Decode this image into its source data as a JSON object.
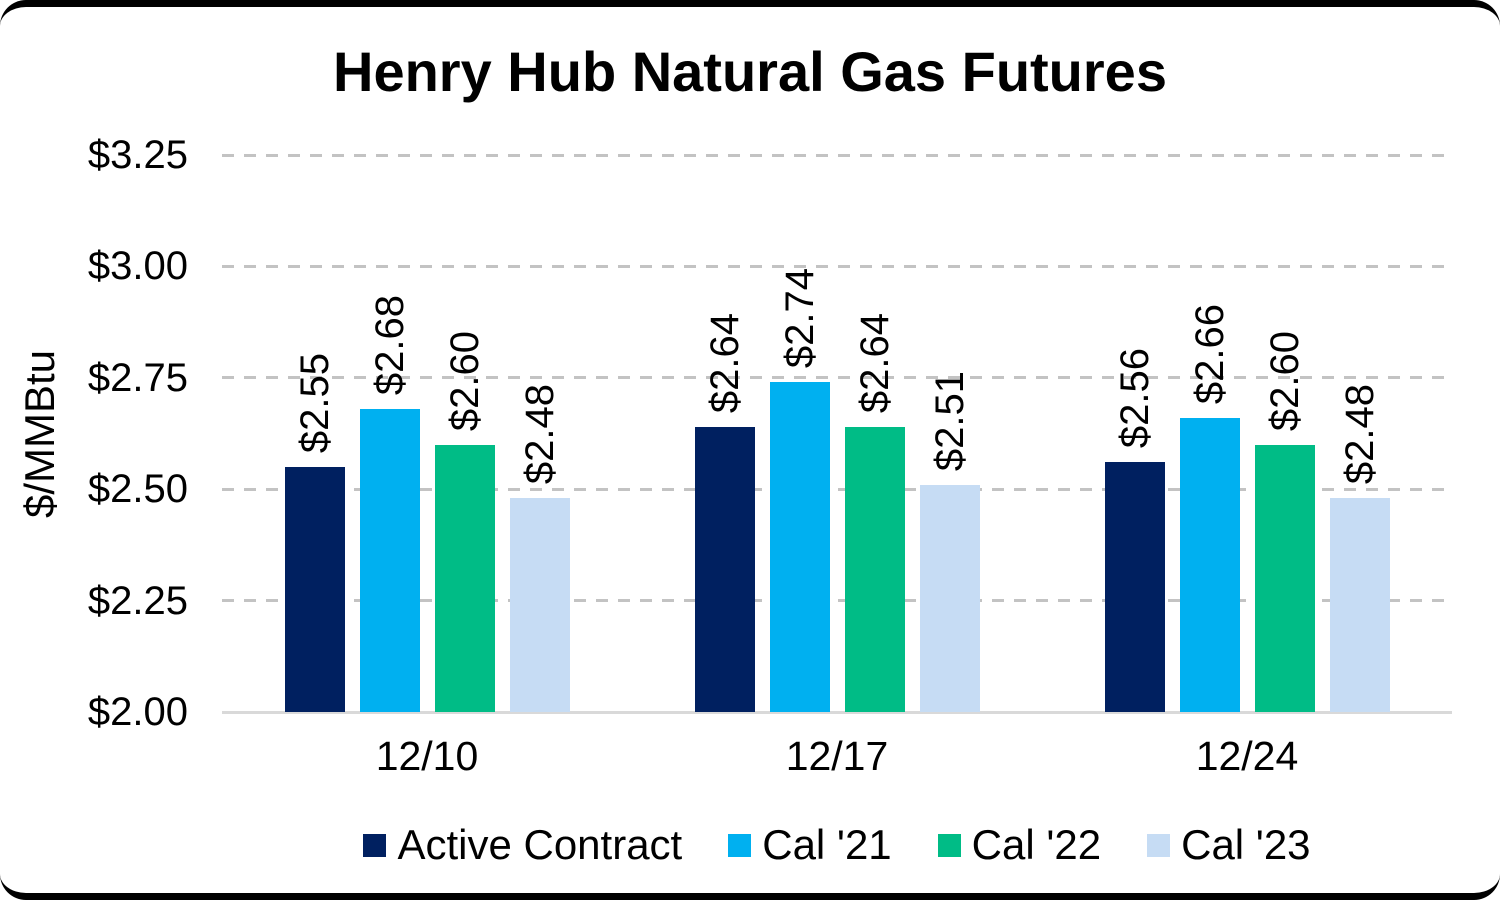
{
  "chart_data": {
    "type": "bar",
    "title": "Henry Hub Natural Gas Futures",
    "ylabel": "$/MMBtu",
    "xlabel": "",
    "categories": [
      "12/10",
      "12/17",
      "12/24"
    ],
    "series": [
      {
        "name": "Active Contract",
        "color": "#002060",
        "values": [
          2.55,
          2.64,
          2.56
        ],
        "labels": [
          "$2.55",
          "$2.64",
          "$2.56"
        ]
      },
      {
        "name": "Cal '21",
        "color": "#00B0F0",
        "values": [
          2.68,
          2.74,
          2.66
        ],
        "labels": [
          "$2.68",
          "$2.74",
          "$2.66"
        ]
      },
      {
        "name": "Cal '22",
        "color": "#00BC86",
        "values": [
          2.6,
          2.64,
          2.6
        ],
        "labels": [
          "$2.60",
          "$2.64",
          "$2.60"
        ]
      },
      {
        "name": "Cal '23",
        "color": "#C6DCF4",
        "values": [
          2.48,
          2.51,
          2.48
        ],
        "labels": [
          "$2.48",
          "$2.51",
          "$2.48"
        ]
      }
    ],
    "ylim": [
      2.0,
      3.25
    ],
    "y_ticks": [
      {
        "value": 3.25,
        "label": "$3.25"
      },
      {
        "value": 3.0,
        "label": "$3.00"
      },
      {
        "value": 2.75,
        "label": "$2.75"
      },
      {
        "value": 2.5,
        "label": "$2.50"
      },
      {
        "value": 2.25,
        "label": "$2.25"
      },
      {
        "value": 2.0,
        "label": "$2.00"
      }
    ],
    "grid": "horizontal-dashed",
    "grid_color": "#C3C3C3",
    "axis_line_color": "#D9D9D9",
    "text_color": "#000000",
    "background_color": "#FFFFFF",
    "legend_position": "bottom",
    "value_labels_rotation": "vertical"
  }
}
